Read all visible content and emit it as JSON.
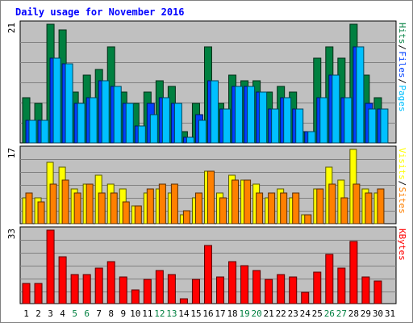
{
  "title": "Daily usage for November 2016",
  "colors": {
    "background": "#c0c0c0",
    "hits": "#008040",
    "files": "#0040ff",
    "pages": "#00c0ff",
    "visits": "#ffff00",
    "sites": "#ff8000",
    "kbytes": "#ff0000",
    "title": "#0000ff",
    "weekend_label": "#008040"
  },
  "chart_data": [
    {
      "type": "bar",
      "panel": "hits-files-pages",
      "categories": [
        "1",
        "2",
        "3",
        "4",
        "5",
        "6",
        "7",
        "8",
        "9",
        "10",
        "11",
        "12",
        "13",
        "14",
        "15",
        "16",
        "17",
        "18",
        "19",
        "20",
        "21",
        "22",
        "23",
        "24",
        "25",
        "26",
        "27",
        "28",
        "29",
        "30",
        "31"
      ],
      "weekend_days": [
        "5",
        "6",
        "12",
        "13",
        "19",
        "20",
        "26",
        "27"
      ],
      "ymax_label": "21",
      "ylim": [
        0,
        21
      ],
      "legend": [
        {
          "label": "Hits",
          "color": "#008040"
        },
        {
          "label": "Files",
          "color": "#0040ff"
        },
        {
          "label": "Pages",
          "color": "#00c0ff"
        }
      ],
      "series": [
        {
          "name": "Hits",
          "values": [
            8,
            7,
            21,
            20,
            9,
            12,
            13,
            17,
            9,
            7,
            9,
            11,
            10,
            2,
            7,
            17,
            7,
            12,
            11,
            11,
            9,
            10,
            9,
            2,
            15,
            17,
            15,
            21,
            12,
            8,
            null
          ]
        },
        {
          "name": "Files",
          "values": [
            4,
            4,
            15,
            14,
            7,
            8,
            11,
            10,
            7,
            3,
            7,
            8,
            7,
            1,
            5,
            11,
            6,
            10,
            10,
            9,
            6,
            8,
            6,
            2,
            8,
            12,
            8,
            17,
            7,
            6,
            null
          ]
        },
        {
          "name": "Pages",
          "values": [
            4,
            4,
            15,
            14,
            7,
            8,
            11,
            10,
            7,
            3,
            5,
            8,
            7,
            1,
            4,
            11,
            6,
            10,
            10,
            9,
            6,
            8,
            6,
            2,
            8,
            12,
            8,
            17,
            6,
            6,
            null
          ]
        }
      ]
    },
    {
      "type": "bar",
      "panel": "visits-sites",
      "categories": [
        "1",
        "2",
        "3",
        "4",
        "5",
        "6",
        "7",
        "8",
        "9",
        "10",
        "11",
        "12",
        "13",
        "14",
        "15",
        "16",
        "17",
        "18",
        "19",
        "20",
        "21",
        "22",
        "23",
        "24",
        "25",
        "26",
        "27",
        "28",
        "29",
        "30",
        "31"
      ],
      "ymax_label": "17",
      "ylim": [
        0,
        17
      ],
      "legend": [
        {
          "label": "Visits",
          "color": "#ffff00"
        },
        {
          "label": "Sites",
          "color": "#ff8000"
        }
      ],
      "series": [
        {
          "name": "Visits",
          "values": [
            6,
            6,
            14,
            13,
            8,
            9,
            11,
            9,
            8,
            4,
            7,
            8,
            7,
            2,
            6,
            12,
            7,
            11,
            10,
            9,
            6,
            8,
            6,
            2,
            8,
            13,
            10,
            17,
            8,
            7,
            null
          ]
        },
        {
          "name": "Sites",
          "values": [
            7,
            5,
            9,
            10,
            7,
            9,
            7,
            7,
            5,
            4,
            8,
            9,
            9,
            3,
            7,
            12,
            6,
            10,
            10,
            7,
            7,
            7,
            7,
            2,
            8,
            9,
            6,
            9,
            7,
            8,
            null
          ]
        }
      ]
    },
    {
      "type": "bar",
      "panel": "kbytes",
      "categories": [
        "1",
        "2",
        "3",
        "4",
        "5",
        "6",
        "7",
        "8",
        "9",
        "10",
        "11",
        "12",
        "13",
        "14",
        "15",
        "16",
        "17",
        "18",
        "19",
        "20",
        "21",
        "22",
        "23",
        "24",
        "25",
        "26",
        "27",
        "28",
        "29",
        "30",
        "31"
      ],
      "ymax_label": "33",
      "ylim": [
        0,
        33
      ],
      "legend": [
        {
          "label": "KBytes",
          "color": "#ff0000"
        }
      ],
      "series": [
        {
          "name": "KBytes",
          "values": [
            9,
            9,
            33,
            21,
            13,
            13,
            16,
            19,
            12,
            6,
            11,
            15,
            13,
            2,
            11,
            26,
            12,
            19,
            17,
            15,
            11,
            13,
            12,
            5,
            14,
            22,
            16,
            28,
            12,
            10,
            null
          ]
        }
      ]
    }
  ]
}
